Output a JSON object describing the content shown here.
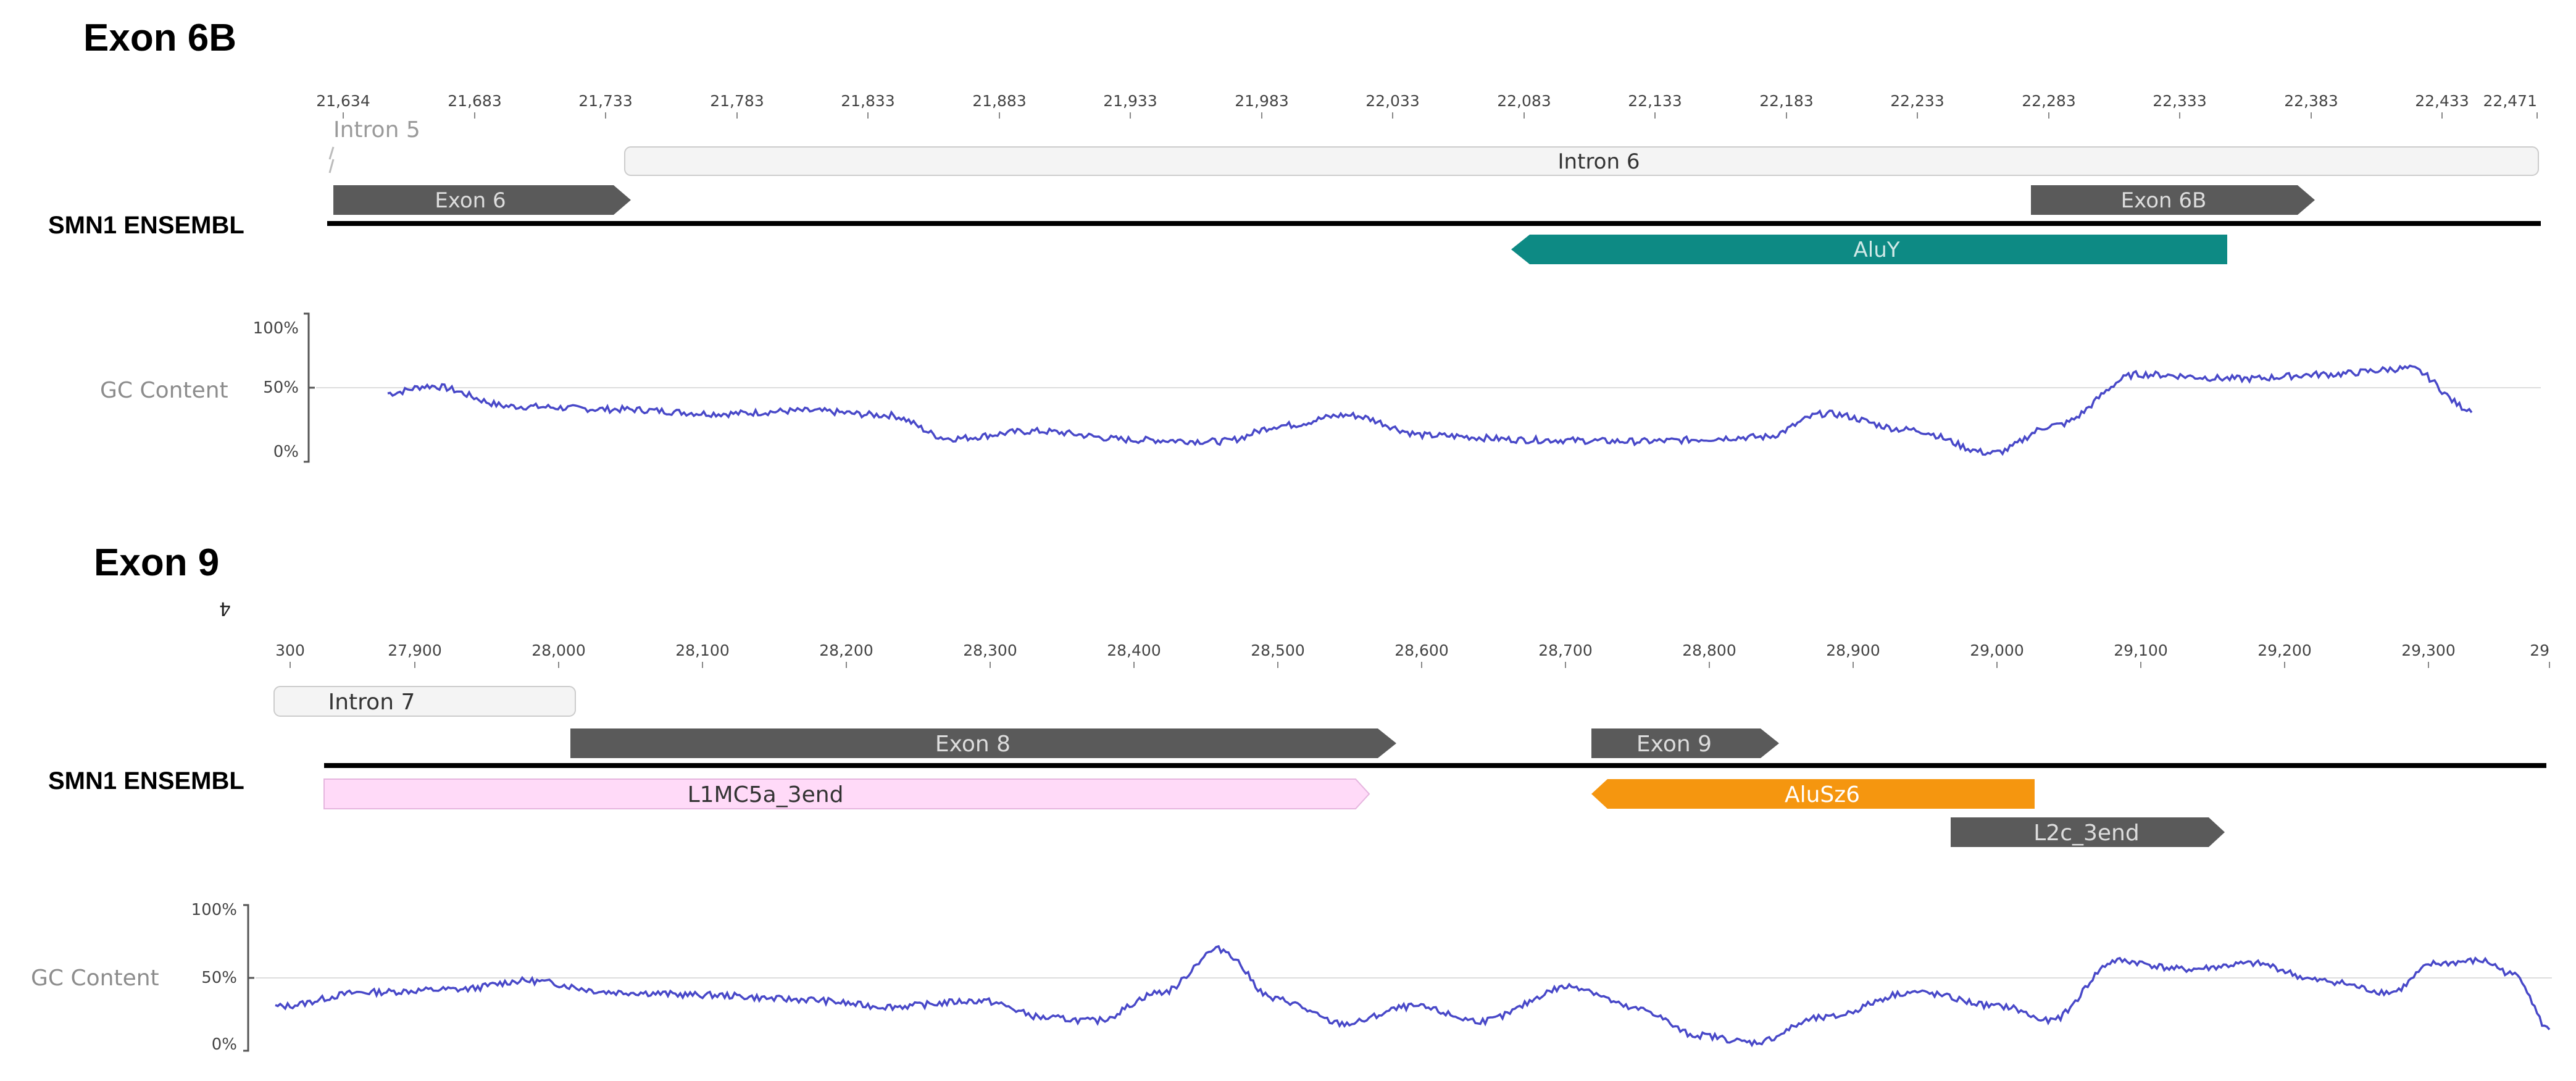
{
  "panels": [
    {
      "title": "Exon 6B",
      "track_label": "SMN1 ENSEMBL",
      "ruler_ticks": [
        "21,634",
        "21,683",
        "21,733",
        "21,783",
        "21,833",
        "21,883",
        "21,933",
        "21,983",
        "22,033",
        "22,083",
        "22,133",
        "22,183",
        "22,233",
        "22,283",
        "22,333",
        "22,383",
        "22,433",
        "22,471"
      ],
      "features": [
        {
          "label": "Intron 5",
          "type": "intron-stub",
          "color": "#f2f2f2"
        },
        {
          "label": "Intron 6",
          "type": "intron",
          "color": "#f4f4f4"
        },
        {
          "label": "Exon 6",
          "type": "exon",
          "color": "#5a5a5a",
          "strand": "+"
        },
        {
          "label": "Exon 6B",
          "type": "exon",
          "color": "#5a5a5a",
          "strand": "+"
        },
        {
          "label": "AluY",
          "type": "repeat",
          "color": "#0d8a84",
          "strand": "-"
        }
      ],
      "gc": {
        "label": "GC Content",
        "y_ticks": [
          "100%",
          "50%",
          "0%"
        ],
        "line_color": "#4848c8"
      }
    },
    {
      "title": "Exon 9",
      "track_label": "SMN1 ENSEMBL",
      "ruler_ticks": [
        "300",
        "27,900",
        "28,000",
        "28,100",
        "28,200",
        "28,300",
        "28,400",
        "28,500",
        "28,600",
        "28,700",
        "28,800",
        "28,900",
        "29,000",
        "29,100",
        "29,200",
        "29,300",
        "29"
      ],
      "features": [
        {
          "label": "Intron 7",
          "type": "intron",
          "color": "#f4f4f4"
        },
        {
          "label": "Exon 8",
          "type": "exon",
          "color": "#5a5a5a",
          "strand": "+"
        },
        {
          "label": "Exon 9",
          "type": "exon",
          "color": "#5a5a5a",
          "strand": "+"
        },
        {
          "label": "L1MC5a_3end",
          "type": "repeat",
          "color": "#ffdaf8",
          "strand": "+"
        },
        {
          "label": "AluSz6",
          "type": "repeat",
          "color": "#f5960f",
          "strand": "-"
        },
        {
          "label": "L2c_3end",
          "type": "repeat",
          "color": "#5a5a5a",
          "strand": "+"
        }
      ],
      "gc": {
        "label": "GC Content",
        "y_ticks": [
          "100%",
          "50%",
          "0%"
        ],
        "line_color": "#4848c8"
      }
    }
  ]
}
